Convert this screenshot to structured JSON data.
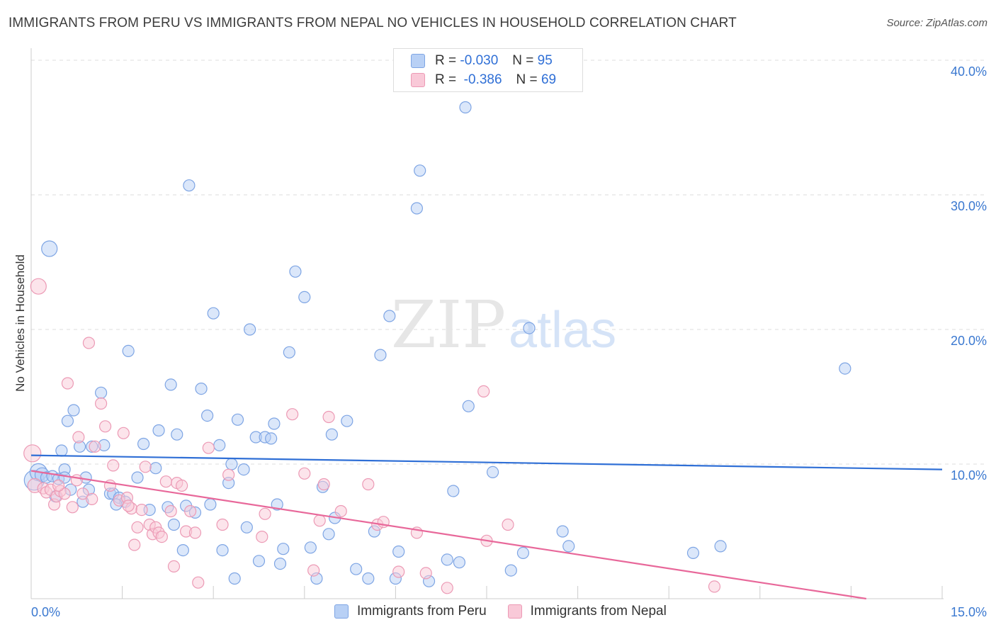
{
  "title": "IMMIGRANTS FROM PERU VS IMMIGRANTS FROM NEPAL NO VEHICLES IN HOUSEHOLD CORRELATION CHART",
  "source": "Source: ZipAtlas.com",
  "watermark": {
    "zip": "ZIP",
    "atlas": "atlas"
  },
  "colors": {
    "blue_fill": "#b8d0f5",
    "blue_stroke": "#7ea5e4",
    "blue_line": "#2f6fd6",
    "pink_fill": "#f9c9d8",
    "pink_stroke": "#ec9ab5",
    "pink_line": "#e8689a",
    "axis_label_blue": "#3a78d0"
  },
  "stats": {
    "peru": {
      "r_label": "R =",
      "r_value": "-0.030",
      "n_label": "N =",
      "n_value": "95"
    },
    "nepal": {
      "r_label": "R =",
      "r_value": "-0.386",
      "n_label": "N =",
      "n_value": "69"
    }
  },
  "legend": {
    "peru": "Immigrants from Peru",
    "nepal": "Immigrants from Nepal"
  },
  "chart_data": {
    "type": "scatter",
    "title": "IMMIGRANTS FROM PERU VS IMMIGRANTS FROM NEPAL NO VEHICLES IN HOUSEHOLD CORRELATION CHART",
    "xlabel": "",
    "ylabel": "No Vehicles in Household",
    "xlim": [
      0,
      15
    ],
    "ylim": [
      0,
      40
    ],
    "x_tick_labels": [
      "0.0%",
      "15.0%"
    ],
    "y_tick_labels": [
      "10.0%",
      "20.0%",
      "30.0%",
      "40.0%"
    ],
    "y_ticks": [
      10,
      20,
      30,
      40
    ],
    "grid": true,
    "legend_position": "bottom-center",
    "series": [
      {
        "name": "Immigrants from Peru",
        "color": "#7ea5e4",
        "trend": [
          [
            0,
            10.65
          ],
          [
            15,
            9.6
          ]
        ],
        "points": [
          [
            0.05,
            8.8,
            14
          ],
          [
            0.12,
            9.4,
            12
          ],
          [
            0.18,
            9.2,
            10
          ],
          [
            0.25,
            9.0,
            8
          ],
          [
            0.3,
            26.0,
            11
          ],
          [
            0.35,
            9.1,
            8
          ],
          [
            0.4,
            7.6,
            8
          ],
          [
            0.45,
            8.9,
            8
          ],
          [
            0.5,
            11.0,
            8
          ],
          [
            0.55,
            9.6,
            8
          ],
          [
            0.6,
            13.2,
            8
          ],
          [
            0.65,
            8.1,
            8
          ],
          [
            0.7,
            14.0,
            8
          ],
          [
            0.8,
            11.3,
            8
          ],
          [
            0.85,
            7.2,
            8
          ],
          [
            0.95,
            8.1,
            8
          ],
          [
            1.0,
            11.3,
            8
          ],
          [
            1.15,
            15.3,
            8
          ],
          [
            1.2,
            11.4,
            8
          ],
          [
            1.3,
            7.8,
            8
          ],
          [
            1.35,
            7.8,
            8
          ],
          [
            1.45,
            7.5,
            8
          ],
          [
            1.55,
            7.2,
            8
          ],
          [
            1.6,
            18.4,
            8
          ],
          [
            1.75,
            9.0,
            8
          ],
          [
            1.85,
            11.5,
            8
          ],
          [
            1.95,
            6.6,
            8
          ],
          [
            2.05,
            9.7,
            8
          ],
          [
            2.1,
            12.5,
            8
          ],
          [
            2.25,
            6.8,
            8
          ],
          [
            2.3,
            15.9,
            8
          ],
          [
            2.35,
            5.5,
            8
          ],
          [
            2.4,
            12.2,
            8
          ],
          [
            2.5,
            3.6,
            8
          ],
          [
            2.55,
            6.9,
            8
          ],
          [
            2.6,
            30.7,
            8
          ],
          [
            2.8,
            15.6,
            8
          ],
          [
            2.9,
            13.6,
            8
          ],
          [
            2.95,
            7.0,
            8
          ],
          [
            3.0,
            21.2,
            8
          ],
          [
            3.1,
            11.4,
            8
          ],
          [
            3.15,
            3.6,
            8
          ],
          [
            3.25,
            8.6,
            8
          ],
          [
            3.3,
            10.0,
            8
          ],
          [
            3.35,
            1.5,
            8
          ],
          [
            3.4,
            13.3,
            8
          ],
          [
            3.5,
            9.6,
            8
          ],
          [
            3.55,
            5.3,
            8
          ],
          [
            3.6,
            20.0,
            8
          ],
          [
            3.7,
            12.0,
            8
          ],
          [
            3.75,
            2.8,
            8
          ],
          [
            3.85,
            12.0,
            8
          ],
          [
            3.95,
            11.9,
            8
          ],
          [
            4.0,
            13.0,
            8
          ],
          [
            4.1,
            2.6,
            8
          ],
          [
            4.15,
            3.7,
            8
          ],
          [
            4.25,
            18.3,
            8
          ],
          [
            4.35,
            24.3,
            8
          ],
          [
            4.5,
            22.4,
            8
          ],
          [
            4.6,
            3.8,
            8
          ],
          [
            4.7,
            1.5,
            8
          ],
          [
            4.8,
            8.3,
            8
          ],
          [
            4.9,
            4.8,
            8
          ],
          [
            4.95,
            12.2,
            8
          ],
          [
            5.0,
            6.0,
            8
          ],
          [
            5.2,
            13.2,
            8
          ],
          [
            5.35,
            2.2,
            8
          ],
          [
            5.55,
            1.5,
            8
          ],
          [
            5.65,
            5.0,
            8
          ],
          [
            5.75,
            18.1,
            8
          ],
          [
            5.9,
            21.0,
            8
          ],
          [
            6.0,
            1.5,
            8
          ],
          [
            6.05,
            3.5,
            8
          ],
          [
            6.35,
            29.0,
            8
          ],
          [
            6.4,
            31.8,
            8
          ],
          [
            6.55,
            1.3,
            8
          ],
          [
            6.85,
            2.9,
            8
          ],
          [
            6.95,
            8.0,
            8
          ],
          [
            7.05,
            2.7,
            8
          ],
          [
            7.15,
            36.5,
            8
          ],
          [
            7.2,
            14.3,
            8
          ],
          [
            7.6,
            9.4,
            8
          ],
          [
            7.9,
            2.1,
            8
          ],
          [
            8.1,
            3.4,
            8
          ],
          [
            8.2,
            20.1,
            8
          ],
          [
            8.75,
            5.0,
            8
          ],
          [
            8.85,
            3.9,
            8
          ],
          [
            10.9,
            3.4,
            8
          ],
          [
            11.35,
            3.9,
            8
          ],
          [
            13.4,
            17.1,
            8
          ],
          [
            0.55,
            9.0,
            8
          ],
          [
            0.9,
            9.0,
            8
          ],
          [
            1.4,
            7.0,
            8
          ],
          [
            2.7,
            6.4,
            8
          ],
          [
            4.05,
            7.0,
            8
          ]
        ]
      },
      {
        "name": "Immigrants from Nepal",
        "color": "#ec9ab5",
        "trend": [
          [
            0,
            9.5
          ],
          [
            13.75,
            0
          ]
        ],
        "points": [
          [
            0.02,
            10.8,
            12
          ],
          [
            0.06,
            8.4,
            10
          ],
          [
            0.12,
            23.2,
            11
          ],
          [
            0.2,
            8.2,
            8
          ],
          [
            0.25,
            7.9,
            8
          ],
          [
            0.32,
            8.1,
            8
          ],
          [
            0.38,
            7.0,
            8
          ],
          [
            0.42,
            7.6,
            8
          ],
          [
            0.48,
            8.0,
            8
          ],
          [
            0.55,
            7.8,
            8
          ],
          [
            0.6,
            16.0,
            8
          ],
          [
            0.68,
            6.8,
            8
          ],
          [
            0.75,
            8.8,
            8
          ],
          [
            0.78,
            12.0,
            8
          ],
          [
            0.85,
            7.8,
            8
          ],
          [
            0.95,
            19.0,
            8
          ],
          [
            1.0,
            7.4,
            8
          ],
          [
            1.05,
            11.3,
            8
          ],
          [
            1.15,
            14.5,
            8
          ],
          [
            1.22,
            12.8,
            8
          ],
          [
            1.3,
            8.4,
            8
          ],
          [
            1.35,
            9.9,
            8
          ],
          [
            1.45,
            7.3,
            8
          ],
          [
            1.52,
            12.3,
            8
          ],
          [
            1.58,
            7.5,
            8
          ],
          [
            1.65,
            6.7,
            8
          ],
          [
            1.7,
            4.0,
            8
          ],
          [
            1.75,
            5.3,
            8
          ],
          [
            1.82,
            6.6,
            8
          ],
          [
            1.88,
            9.8,
            8
          ],
          [
            1.95,
            5.5,
            8
          ],
          [
            2.0,
            4.8,
            8
          ],
          [
            2.05,
            5.3,
            8
          ],
          [
            2.1,
            4.9,
            8
          ],
          [
            2.15,
            4.6,
            8
          ],
          [
            2.22,
            8.7,
            8
          ],
          [
            2.3,
            6.5,
            8
          ],
          [
            2.35,
            2.4,
            8
          ],
          [
            2.4,
            8.6,
            8
          ],
          [
            2.48,
            8.4,
            8
          ],
          [
            2.55,
            5.0,
            8
          ],
          [
            2.62,
            6.5,
            8
          ],
          [
            2.7,
            4.9,
            8
          ],
          [
            2.75,
            1.2,
            8
          ],
          [
            2.92,
            11.2,
            8
          ],
          [
            3.15,
            5.5,
            8
          ],
          [
            3.25,
            9.2,
            8
          ],
          [
            3.8,
            4.6,
            8
          ],
          [
            3.85,
            6.3,
            8
          ],
          [
            4.3,
            13.7,
            8
          ],
          [
            4.5,
            9.3,
            8
          ],
          [
            4.65,
            2.1,
            8
          ],
          [
            4.75,
            5.8,
            8
          ],
          [
            4.82,
            8.5,
            8
          ],
          [
            4.9,
            13.5,
            8
          ],
          [
            5.1,
            6.5,
            8
          ],
          [
            5.55,
            8.5,
            8
          ],
          [
            5.7,
            5.5,
            8
          ],
          [
            5.8,
            5.7,
            8
          ],
          [
            6.05,
            2.0,
            8
          ],
          [
            6.35,
            4.9,
            8
          ],
          [
            6.5,
            1.9,
            8
          ],
          [
            6.85,
            0.8,
            8
          ],
          [
            7.45,
            15.4,
            8
          ],
          [
            7.5,
            4.3,
            8
          ],
          [
            7.85,
            5.5,
            8
          ],
          [
            11.25,
            0.9,
            8
          ],
          [
            1.6,
            6.9,
            8
          ],
          [
            0.45,
            8.4,
            8
          ]
        ]
      }
    ]
  }
}
